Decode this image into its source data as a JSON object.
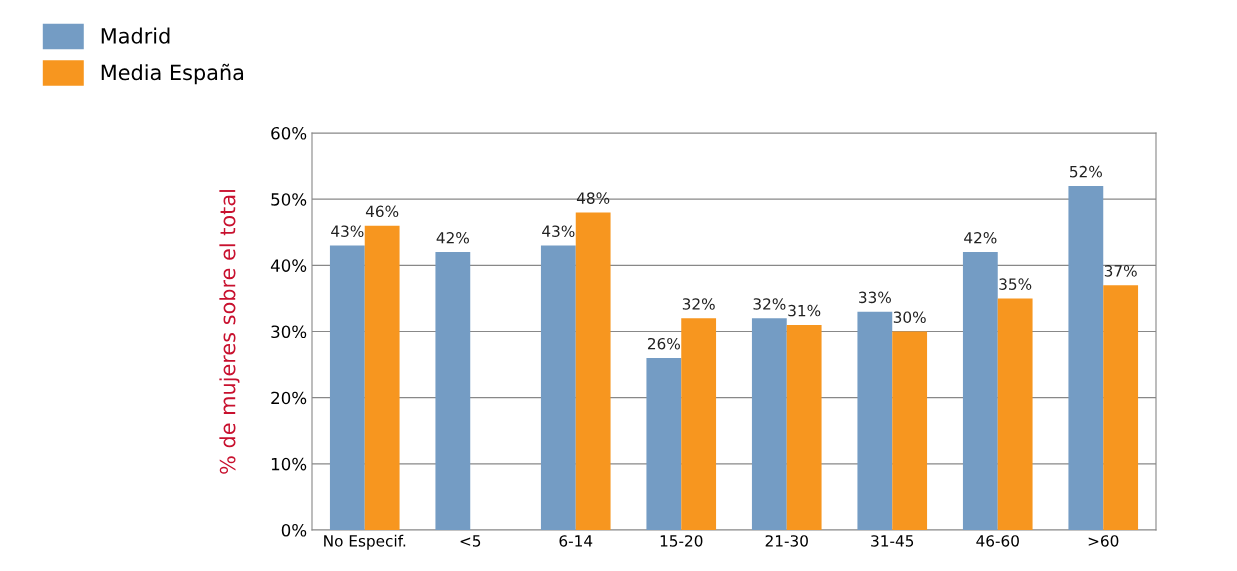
{
  "chart_data": {
    "type": "bar",
    "ylabel": "% de mujeres sobre el total",
    "categories": [
      "No Especif.",
      "<5",
      "6-14",
      "15-20",
      "21-30",
      "31-45",
      "46-60",
      ">60"
    ],
    "series": [
      {
        "name": "Madrid",
        "color": "#749cc4",
        "values": [
          43,
          42,
          43,
          26,
          32,
          33,
          42,
          52
        ],
        "value_labels": [
          "43%",
          "42%",
          "43%",
          "26%",
          "32%",
          "33%",
          "42%",
          "52%"
        ]
      },
      {
        "name": "Media España",
        "color": "#f7961f",
        "values": [
          46,
          null,
          48,
          32,
          31,
          30,
          35,
          37
        ],
        "value_labels": [
          "46%",
          null,
          "48%",
          "32%",
          "31%",
          "30%",
          "35%",
          "37%"
        ]
      }
    ],
    "ylim": [
      0,
      60
    ],
    "yticks": [
      {
        "value": 0,
        "label": "0%"
      },
      {
        "value": 10,
        "label": "10%"
      },
      {
        "value": 20,
        "label": "20%"
      },
      {
        "value": 30,
        "label": "30%"
      },
      {
        "value": 40,
        "label": "40%"
      },
      {
        "value": 50,
        "label": "50%"
      },
      {
        "value": 60,
        "label": "60%"
      }
    ],
    "grid": "y",
    "legend": "top left"
  }
}
